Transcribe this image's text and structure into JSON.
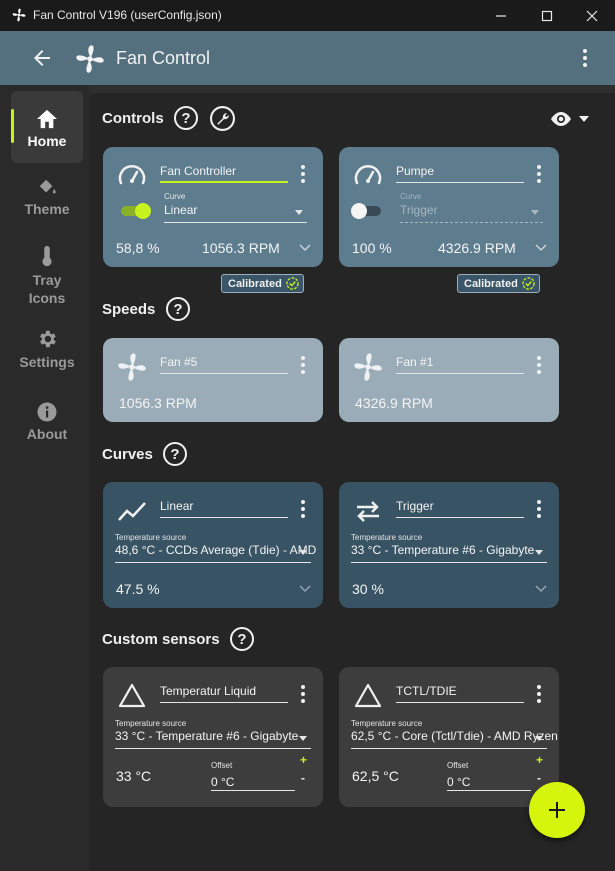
{
  "window": {
    "title": "Fan Control V196 (userConfig.json)"
  },
  "header": {
    "title": "Fan Control"
  },
  "nav": {
    "home": "Home",
    "theme": "Theme",
    "tray_line1": "Tray",
    "tray_line2": "Icons",
    "settings": "Settings",
    "about": "About"
  },
  "sections": {
    "controls": "Controls",
    "speeds": "Speeds",
    "curves": "Curves",
    "custom_sensors": "Custom sensors"
  },
  "help_glyph": "?",
  "controls": [
    {
      "name": "Fan Controller",
      "curve_label": "Curve",
      "curve": "Linear",
      "enabled": true,
      "percent": "58,8 %",
      "rpm": "1056.3 RPM",
      "badge": "Calibrated"
    },
    {
      "name": "Pumpe",
      "curve_label": "Curve",
      "curve": "Trigger",
      "enabled": false,
      "percent": "100 %",
      "rpm": "4326.9 RPM",
      "badge": "Calibrated"
    }
  ],
  "speeds": [
    {
      "name": "Fan #5",
      "rpm": "1056.3 RPM"
    },
    {
      "name": "Fan #1",
      "rpm": "4326.9 RPM"
    }
  ],
  "curves": [
    {
      "name": "Linear",
      "icon": "linear-curve-icon",
      "temp_label": "Temperature source",
      "temp_source": "48,6 °C - CCDs Average (Tdie) - AMD",
      "value": "47.5 %"
    },
    {
      "name": "Trigger",
      "icon": "trigger-curve-icon",
      "temp_label": "Temperature source",
      "temp_source": "33 °C - Temperature #6 - Gigabyte",
      "value": "30 %"
    }
  ],
  "custom_sensors": [
    {
      "name": "Temperatur Liquid",
      "temp_label": "Temperature source",
      "temp_source": "33 °C - Temperature #6 - Gigabyte",
      "value": "33 °C",
      "offset_label": "Offset",
      "offset": "0 °C",
      "plus": "+",
      "minus": "-"
    },
    {
      "name": "TCTL/TDIE",
      "temp_label": "Temperature source",
      "temp_source": "62,5 °C - Core (Tctl/Tdie) - AMD Ryzen",
      "value": "62,5 °C",
      "offset_label": "Offset",
      "offset": "0 °C",
      "plus": "+",
      "minus": "-"
    }
  ],
  "colors": {
    "accent": "#c8f21e",
    "header": "#54707f",
    "control_card": "#5d7c8e",
    "speed_card": "#9aacb7",
    "curve_card": "#385464",
    "sensor_card": "#3d3d3d"
  }
}
